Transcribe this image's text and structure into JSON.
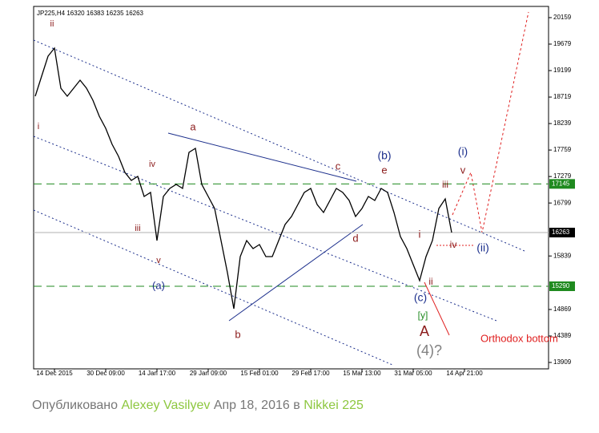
{
  "chart_data": {
    "type": "line",
    "title": "JP225,H4  16320 16383 16235 16263",
    "categories": [
      null,
      null,
      null,
      "14 Dec 2015",
      null,
      null,
      null,
      null,
      null,
      null,
      null,
      "30 Dec 09:00",
      null,
      null,
      null,
      null,
      null,
      null,
      null,
      "14 Jan 17:00",
      null,
      null,
      null,
      null,
      null,
      null,
      null,
      "29 Jan 09:00",
      null,
      null,
      null,
      null,
      null,
      null,
      null,
      "15 Feb 01:00",
      null,
      null,
      null,
      null,
      null,
      null,
      null,
      "29 Feb 17:00",
      null,
      null,
      null,
      null,
      null,
      null,
      null,
      "15 Mar 13:00",
      null,
      null,
      null,
      null,
      null,
      null,
      null,
      "31 Mar 05:00",
      null,
      null,
      null,
      null,
      null,
      null,
      null,
      "14 Apr 21:00"
    ],
    "series": [
      {
        "name": "JP225",
        "color": "#000000",
        "values": [
          18735,
          19098,
          19461,
          19607,
          18880,
          18735,
          18880,
          19025,
          18880,
          18662,
          18371,
          18153,
          17863,
          17644,
          17354,
          17208,
          17281,
          16918,
          16990,
          16118,
          16918,
          17063,
          17136,
          17063,
          17717,
          17790,
          17136,
          16918,
          16700,
          16118,
          15537,
          14883,
          15828,
          16118,
          15973,
          16046,
          15828,
          15828,
          16118,
          16409,
          16554,
          16772,
          16990,
          17063,
          16772,
          16627,
          16845,
          17063,
          16990,
          16845,
          16554,
          16700,
          16918,
          16845,
          17063,
          16990,
          16627,
          16191,
          15973,
          15682,
          15392,
          15828,
          16118,
          16700,
          16874,
          16264,
          null,
          null
        ]
      }
    ],
    "ylim": [
      13793,
      20362
    ],
    "yticks": [
      13909,
      14389,
      14869,
      15839,
      16799,
      17279,
      17759,
      18239,
      18719,
      19199,
      19679,
      20159
    ],
    "hlines": [
      {
        "value": 17145,
        "color": "#1f8a1f",
        "style": "dashed"
      },
      {
        "value": 16263,
        "color": "#b0b0b0",
        "style": "solid"
      },
      {
        "value": 15290,
        "color": "#1f8a1f",
        "style": "dashed"
      }
    ],
    "annotations": [
      {
        "text": "ii",
        "color": "#8b1a1a"
      },
      {
        "text": "i",
        "color": "#8b1a1a"
      },
      {
        "text": "iv",
        "color": "#8b1a1a"
      },
      {
        "text": "iii",
        "color": "#8b1a1a"
      },
      {
        "text": "v",
        "color": "#8b1a1a"
      },
      {
        "text": "(a)",
        "color": "#1c2f8c"
      },
      {
        "text": "a",
        "color": "#8b1a1a"
      },
      {
        "text": "b",
        "color": "#8b1a1a"
      },
      {
        "text": "c",
        "color": "#8b1a1a"
      },
      {
        "text": "d",
        "color": "#8b1a1a"
      },
      {
        "text": "(b)",
        "color": "#1c2f8c"
      },
      {
        "text": "e",
        "color": "#8b1a1a"
      },
      {
        "text": "i",
        "color": "#8b1a1a"
      },
      {
        "text": "ii",
        "color": "#8b1a1a"
      },
      {
        "text": "(c)",
        "color": "#1c2f8c"
      },
      {
        "text": "[y]",
        "color": "#1f8a1f"
      },
      {
        "text": "A",
        "color": "#8b1a1a"
      },
      {
        "text": "(4)?",
        "color": "#808080"
      },
      {
        "text": "iii",
        "color": "#8b1a1a"
      },
      {
        "text": "v",
        "color": "#8b1a1a"
      },
      {
        "text": "(i)",
        "color": "#1c2f8c"
      },
      {
        "text": "iv",
        "color": "#8b1a1a"
      },
      {
        "text": "(ii)",
        "color": "#1c2f8c"
      },
      {
        "text": "Orthodox bottom",
        "color": "#e02020"
      }
    ]
  },
  "footer": {
    "prefix": "Опубликовано",
    "author": "Alexey Vasilyev",
    "date": "Апр 18, 2016",
    "preposition": "в",
    "market": "Nikkei 225"
  }
}
